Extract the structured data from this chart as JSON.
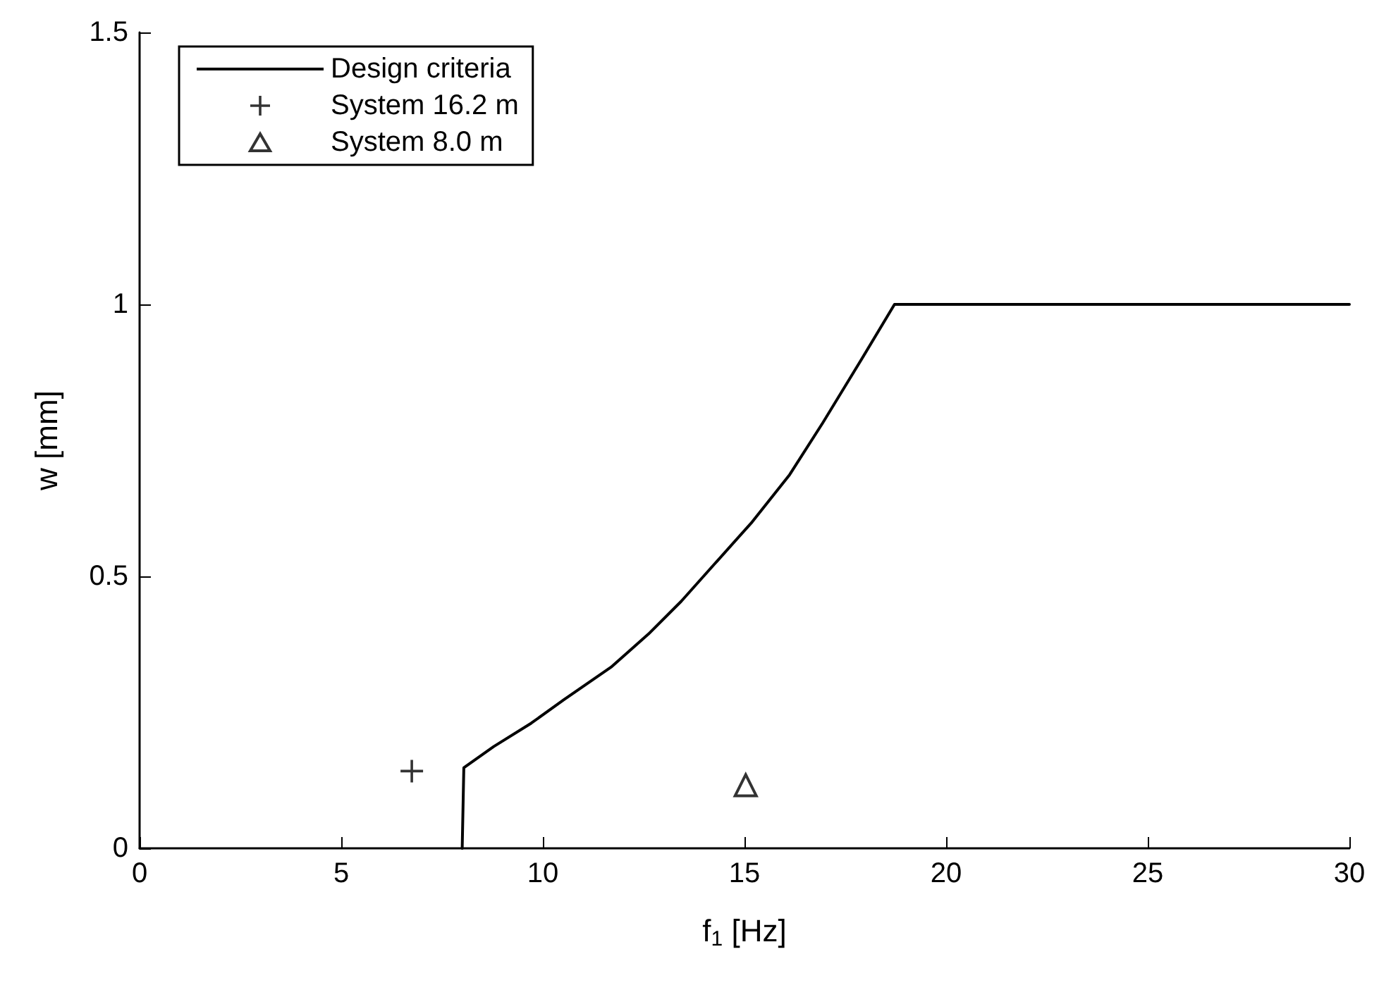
{
  "chart_data": {
    "type": "line",
    "xlabel": "f$_{1}$ [Hz]",
    "ylabel": "w [mm]",
    "xlim": [
      0,
      30
    ],
    "xticks": [
      0,
      5,
      10,
      15,
      20,
      25,
      30
    ],
    "ylim": [
      0,
      1.5
    ],
    "yticks": [
      0,
      0.5,
      1,
      1.5
    ],
    "grid": false,
    "legend": "top left",
    "series": [
      {
        "name": "Design criteria",
        "color": "#000000",
        "marker": "none",
        "line_style": "solid",
        "x": [
          8,
          8.04,
          8.78,
          9.71,
          10.52,
          11.69,
          12.62,
          13.43,
          14.26,
          15.19,
          16.12,
          16.94,
          17.87,
          18.72,
          30
        ],
        "values": [
          0,
          0.148,
          0.187,
          0.23,
          0.273,
          0.333,
          0.394,
          0.454,
          0.523,
          0.6,
          0.687,
          0.782,
          0.895,
          1.0,
          1.0
        ]
      },
      {
        "name": "System 16.2 m",
        "type": "scatter",
        "color": "#000000",
        "marker": "cross",
        "x": [
          6.75
        ],
        "values": [
          0.142
        ]
      },
      {
        "name": "System 8.0 m",
        "type": "scatter",
        "color": "#000000",
        "marker": "triangle",
        "x": [
          15.03
        ],
        "values": [
          0.116
        ]
      }
    ]
  }
}
